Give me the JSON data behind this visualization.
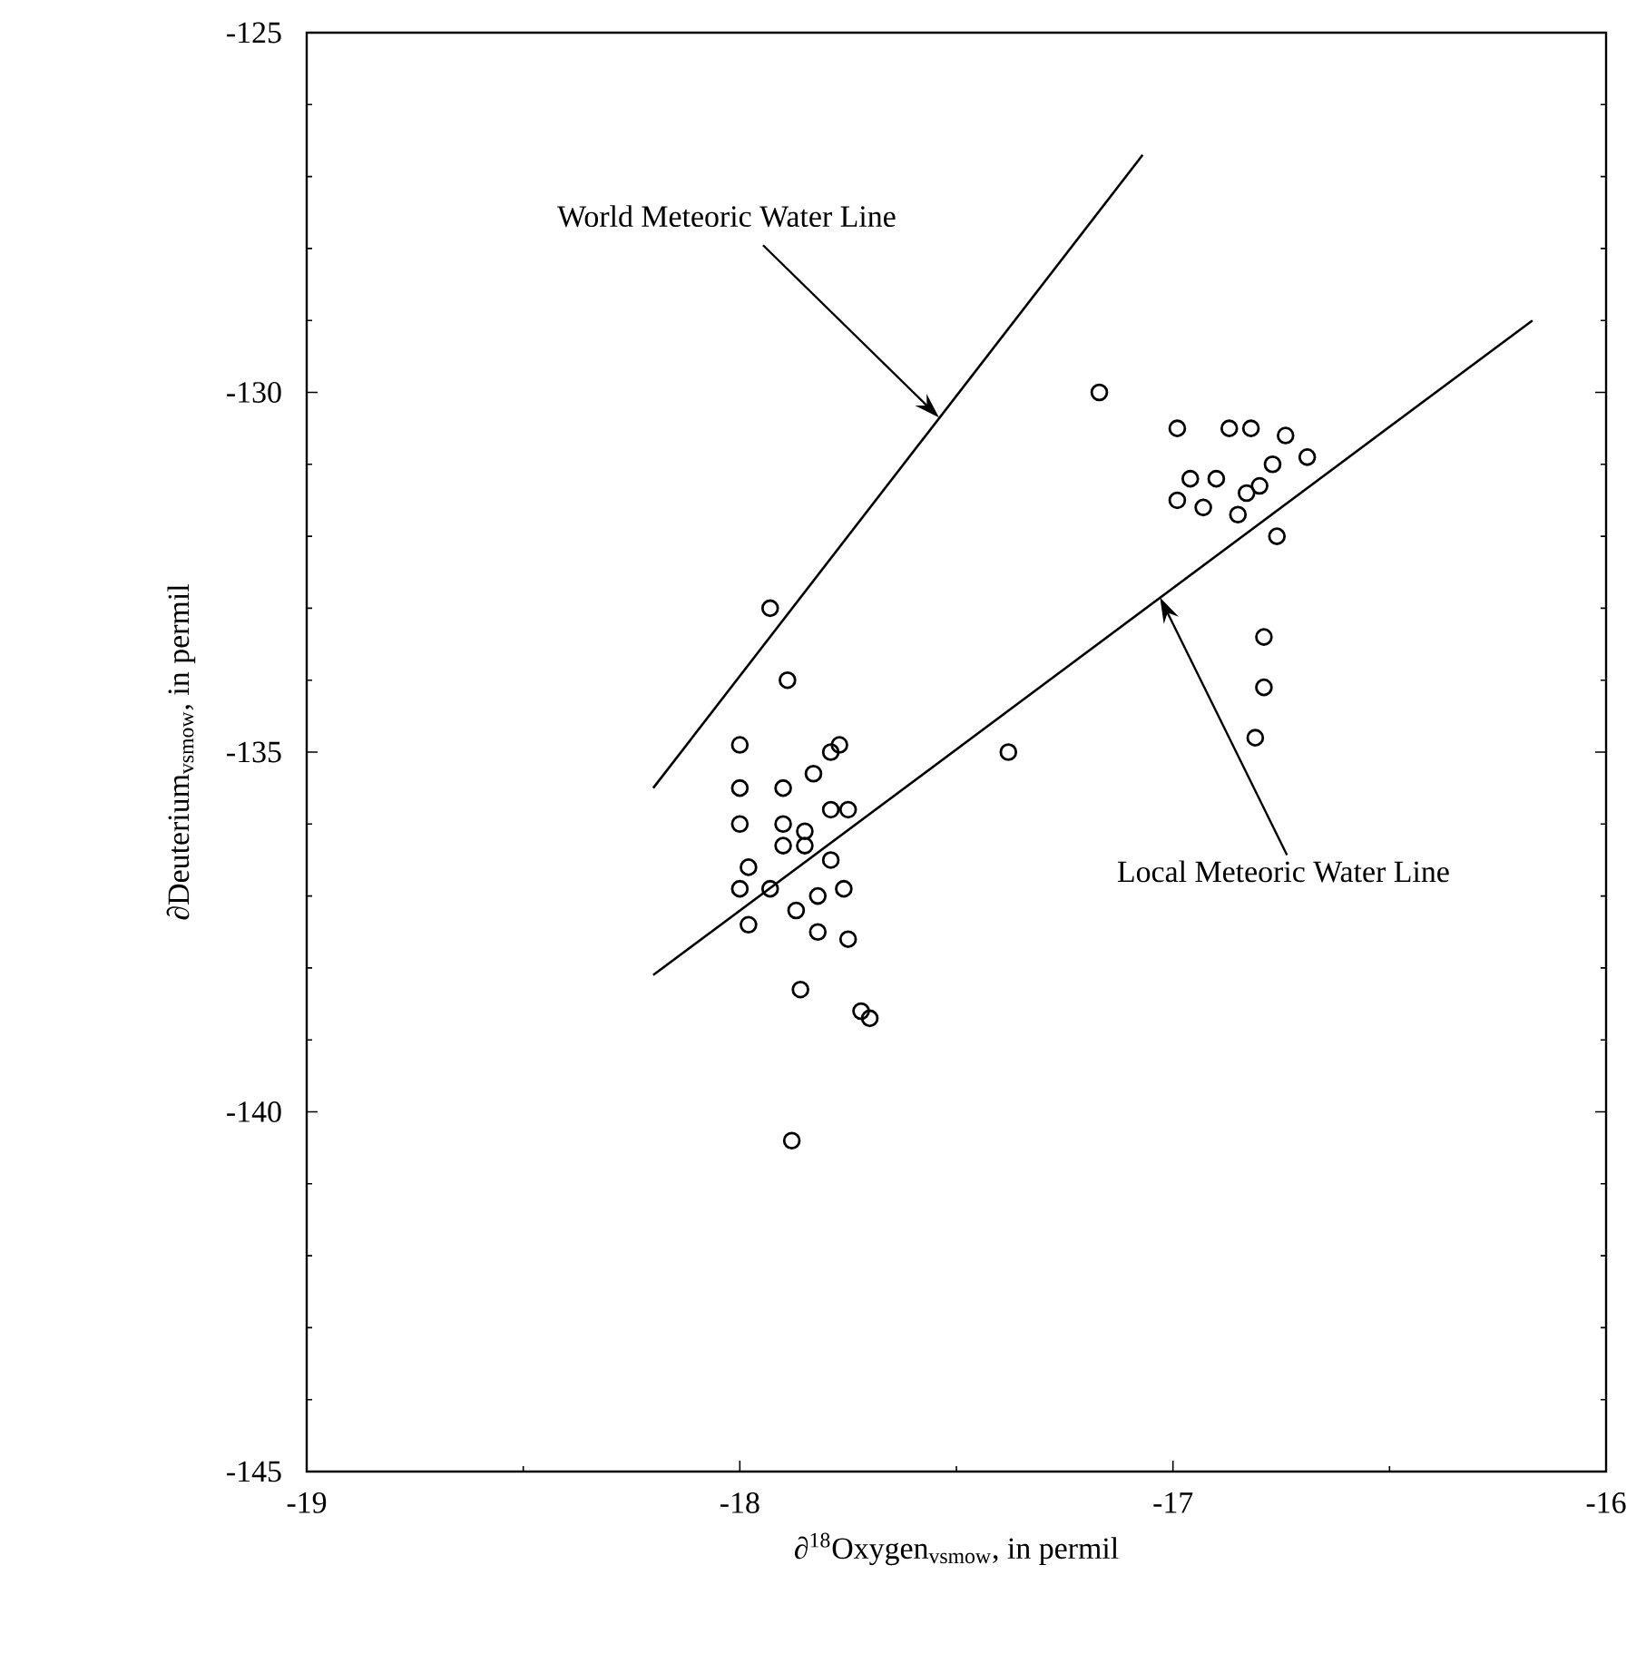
{
  "chart_data": {
    "type": "scatter",
    "xlabel": "∂$^{18}$Oxygen$_{vsmow}$, in permil",
    "ylabel": "∂Deuterium$_{vsmow}$, in permil",
    "xlim": [
      -19,
      -16
    ],
    "ylim": [
      -145,
      -125
    ],
    "xticks": [
      -19,
      -18,
      -17,
      -16
    ],
    "yticks": [
      -145,
      -140,
      -135,
      -130,
      -125
    ],
    "grid": false,
    "series": [
      {
        "color": "#000000",
        "marker": "circle",
        "x": [
          -17.93,
          -17.89,
          -18.0,
          -18.0,
          -18.0,
          -17.9,
          -17.83,
          -17.79,
          -17.77,
          -17.9,
          -17.85,
          -17.79,
          -17.75,
          -17.9,
          -17.85,
          -17.79,
          -17.98,
          -18.0,
          -17.93,
          -17.87,
          -17.82,
          -17.76,
          -17.98,
          -17.82,
          -17.75,
          -17.86,
          -17.72,
          -17.7,
          -17.88,
          -17.38,
          -17.17,
          -16.99,
          -16.87,
          -16.82,
          -16.74,
          -16.69,
          -16.77,
          -16.96,
          -16.9,
          -16.8,
          -16.83,
          -16.99,
          -16.93,
          -16.85,
          -16.76,
          -16.79,
          -16.79,
          -16.81
        ],
        "values": [
          -133.0,
          -134.0,
          -134.9,
          -135.5,
          -136.0,
          -135.5,
          -135.3,
          -135.0,
          -134.9,
          -136.0,
          -136.1,
          -135.8,
          -135.8,
          -136.3,
          -136.3,
          -136.5,
          -136.6,
          -136.9,
          -136.9,
          -137.2,
          -137.0,
          -136.9,
          -137.4,
          -137.5,
          -137.6,
          -138.3,
          -138.6,
          -138.7,
          -140.4,
          -135.0,
          -130.0,
          -130.5,
          -130.5,
          -130.5,
          -130.6,
          -130.9,
          -131.0,
          -131.2,
          -131.2,
          -131.3,
          -131.4,
          -131.5,
          -131.6,
          -131.7,
          -132.0,
          -133.4,
          -134.1,
          -134.8
        ]
      },
      {
        "type": "line",
        "color": "#000000",
        "marker": "none",
        "line_style": "solid",
        "x": [
          -18.2,
          -17.07
        ],
        "values": [
          -135.5,
          -126.7
        ]
      },
      {
        "type": "line",
        "color": "#000000",
        "marker": "none",
        "line_style": "solid",
        "x": [
          -18.2,
          -16.17
        ],
        "values": [
          -138.1,
          -129.0
        ]
      }
    ],
    "annotations": [
      {
        "text": "World Meteoric Water Line",
        "x": -17.54,
        "y": -130.35
      },
      {
        "text": "Local Meteoric Water Line",
        "x": -17.03,
        "y": -132.85
      }
    ]
  }
}
